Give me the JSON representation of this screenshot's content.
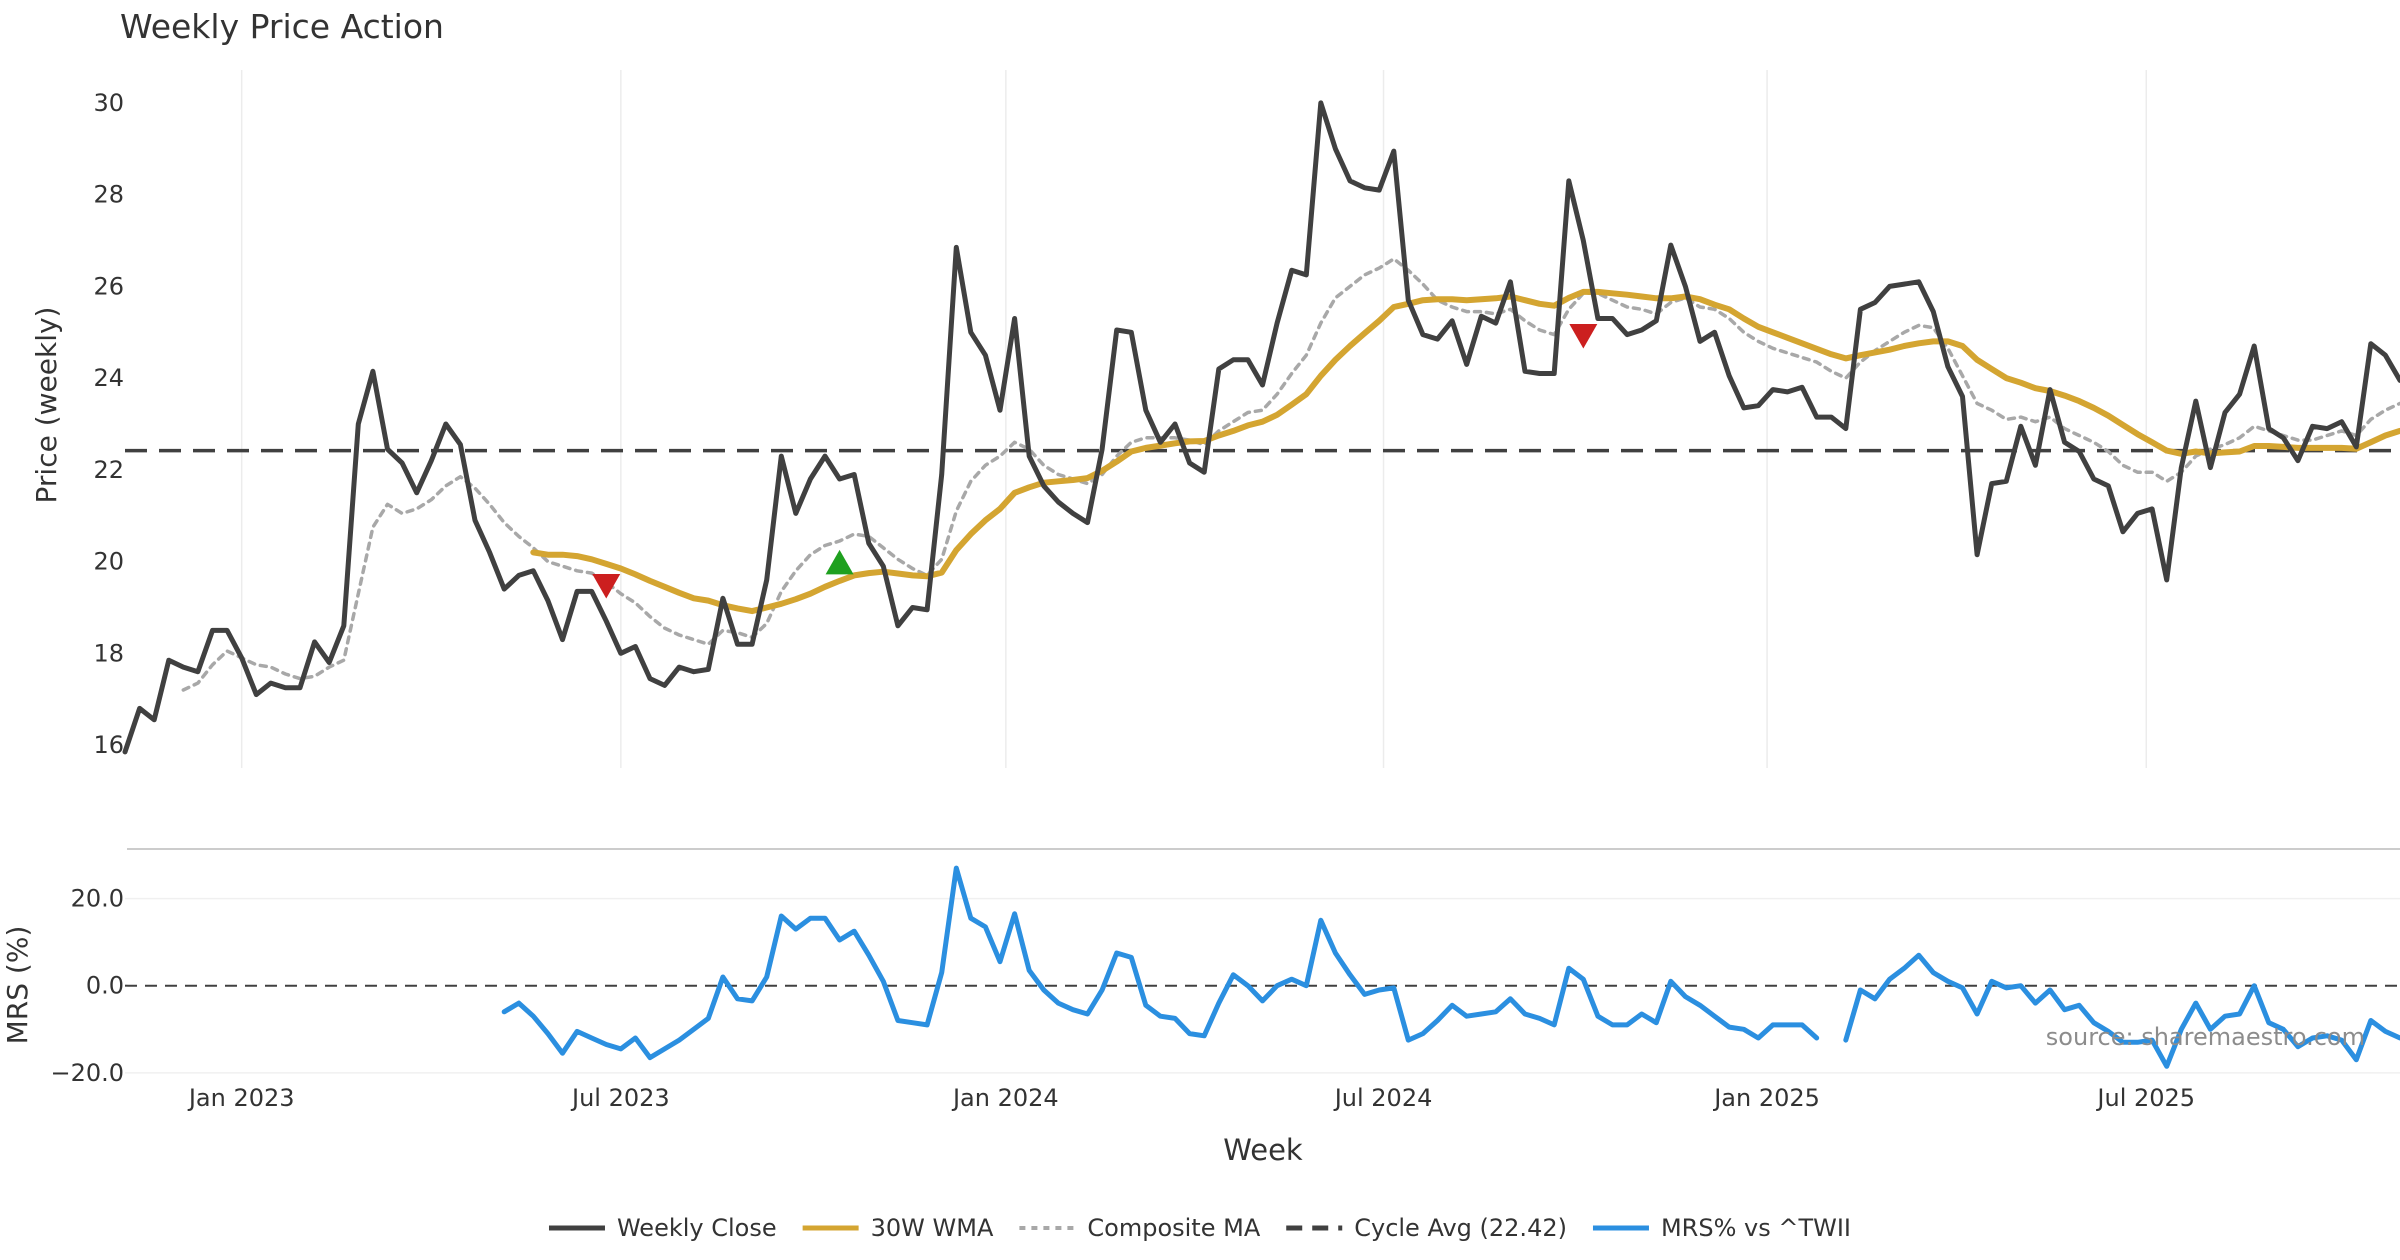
{
  "chart_data": [
    {
      "type": "line",
      "panel": "price",
      "title": "Weekly Price Action",
      "ylabel": "Price (weekly)",
      "ylim": [
        15.5,
        30.5
      ],
      "yticks": [
        16,
        18,
        20,
        22,
        24,
        26,
        28,
        30
      ],
      "grid": "vertical",
      "series": [
        {
          "name": "Weekly Close",
          "color": "#404040",
          "values": [
            15.85,
            16.8,
            16.55,
            17.85,
            17.7,
            17.6,
            18.5,
            18.5,
            17.9,
            17.1,
            17.35,
            17.25,
            17.25,
            18.25,
            17.8,
            18.6,
            23.0,
            24.15,
            22.45,
            22.15,
            21.5,
            22.2,
            23.0,
            22.55,
            20.9,
            20.2,
            19.4,
            19.7,
            19.8,
            19.15,
            18.3,
            19.35,
            19.35,
            18.7,
            18.0,
            18.15,
            17.45,
            17.3,
            17.7,
            17.6,
            17.65,
            19.2,
            18.2,
            18.2,
            19.6,
            22.3,
            21.05,
            21.8,
            22.3,
            21.8,
            21.9,
            20.4,
            19.9,
            18.6,
            19.0,
            18.95,
            21.9,
            26.85,
            25.0,
            24.5,
            23.3,
            25.3,
            22.3,
            21.65,
            21.3,
            21.05,
            20.85,
            22.45,
            25.05,
            25.0,
            23.3,
            22.6,
            23.0,
            22.15,
            21.95,
            24.2,
            24.4,
            24.4,
            23.85,
            25.2,
            26.35,
            26.25,
            30.0,
            29.0,
            28.3,
            28.15,
            28.1,
            28.95,
            25.7,
            24.95,
            24.85,
            25.25,
            24.3,
            25.35,
            25.2,
            26.1,
            24.15,
            24.1,
            24.1,
            28.3,
            27.0,
            25.3,
            25.3,
            24.95,
            25.05,
            25.25,
            26.9,
            26.0,
            24.8,
            25.0,
            24.05,
            23.35,
            23.4,
            23.75,
            23.7,
            23.8,
            23.15,
            23.15,
            22.9,
            25.5,
            25.65,
            26.0,
            26.05,
            26.1,
            25.45,
            24.25,
            23.6,
            20.15,
            21.7,
            21.75,
            22.95,
            22.1,
            23.75,
            22.6,
            22.4,
            21.8,
            21.65,
            20.65,
            21.05,
            21.15,
            19.6,
            22.05,
            23.5,
            22.05,
            23.25,
            23.65,
            24.7,
            22.9,
            22.7,
            22.2,
            22.95,
            22.9,
            23.05,
            22.5,
            24.75,
            24.5,
            23.95
          ]
        },
        {
          "name": "30W WMA",
          "color": "#d4a531",
          "values": [
            null,
            null,
            null,
            null,
            null,
            null,
            null,
            null,
            null,
            null,
            null,
            null,
            null,
            null,
            null,
            null,
            null,
            null,
            null,
            null,
            null,
            null,
            null,
            null,
            null,
            null,
            null,
            null,
            20.2,
            20.15,
            20.15,
            20.12,
            20.05,
            19.95,
            19.85,
            19.72,
            19.58,
            19.45,
            19.32,
            19.2,
            19.15,
            19.05,
            18.98,
            18.92,
            19.0,
            19.08,
            19.18,
            19.3,
            19.45,
            19.58,
            19.7,
            19.75,
            19.78,
            19.74,
            19.7,
            19.68,
            19.76,
            20.25,
            20.6,
            20.9,
            21.15,
            21.5,
            21.62,
            21.72,
            21.75,
            21.78,
            21.82,
            21.98,
            22.18,
            22.4,
            22.48,
            22.53,
            22.58,
            22.62,
            22.63,
            22.75,
            22.85,
            22.97,
            23.05,
            23.2,
            23.42,
            23.65,
            24.05,
            24.4,
            24.7,
            24.98,
            25.25,
            25.55,
            25.62,
            25.7,
            25.72,
            25.72,
            25.7,
            25.72,
            25.74,
            25.78,
            25.7,
            25.62,
            25.58,
            25.75,
            25.88,
            25.88,
            25.85,
            25.82,
            25.78,
            25.74,
            25.74,
            25.78,
            25.72,
            25.6,
            25.5,
            25.3,
            25.12,
            25.0,
            24.88,
            24.76,
            24.64,
            24.52,
            24.43,
            24.5,
            24.56,
            24.62,
            24.7,
            24.76,
            24.8,
            24.8,
            24.7,
            24.4,
            24.2,
            24.0,
            23.9,
            23.78,
            23.72,
            23.62,
            23.5,
            23.35,
            23.18,
            22.98,
            22.78,
            22.6,
            22.42,
            22.35,
            22.4,
            22.36,
            22.38,
            22.4,
            22.52,
            22.52,
            22.5,
            22.48,
            22.48,
            22.48,
            22.48,
            22.46,
            22.6,
            22.75,
            22.85
          ]
        },
        {
          "name": "Composite MA",
          "color": "#a8a8a8",
          "values": [
            null,
            null,
            null,
            null,
            17.2,
            17.35,
            17.75,
            18.05,
            17.9,
            17.75,
            17.7,
            17.55,
            17.45,
            17.5,
            17.7,
            17.85,
            19.3,
            20.75,
            21.25,
            21.05,
            21.15,
            21.35,
            21.65,
            21.85,
            21.6,
            21.25,
            20.85,
            20.55,
            20.3,
            20.0,
            19.9,
            19.8,
            19.75,
            19.55,
            19.3,
            19.1,
            18.8,
            18.55,
            18.4,
            18.3,
            18.2,
            18.5,
            18.45,
            18.35,
            18.65,
            19.35,
            19.8,
            20.15,
            20.35,
            20.45,
            20.6,
            20.55,
            20.3,
            20.05,
            19.85,
            19.7,
            20.05,
            21.1,
            21.75,
            22.1,
            22.3,
            22.6,
            22.45,
            22.1,
            21.9,
            21.8,
            21.7,
            21.9,
            22.3,
            22.6,
            22.7,
            22.7,
            22.7,
            22.65,
            22.55,
            22.85,
            23.05,
            23.25,
            23.3,
            23.65,
            24.1,
            24.5,
            25.2,
            25.75,
            26.0,
            26.25,
            26.4,
            26.6,
            26.35,
            26.05,
            25.7,
            25.55,
            25.45,
            25.45,
            25.4,
            25.5,
            25.25,
            25.05,
            24.95,
            25.5,
            25.85,
            25.85,
            25.7,
            25.55,
            25.5,
            25.4,
            25.65,
            25.75,
            25.55,
            25.5,
            25.3,
            25.0,
            24.8,
            24.65,
            24.55,
            24.45,
            24.35,
            24.15,
            24.0,
            24.35,
            24.6,
            24.8,
            25.0,
            25.15,
            25.1,
            24.65,
            24.05,
            23.45,
            23.3,
            23.1,
            23.15,
            23.05,
            23.15,
            22.9,
            22.75,
            22.6,
            22.4,
            22.1,
            21.95,
            21.95,
            21.75,
            21.95,
            22.3,
            22.45,
            22.55,
            22.7,
            22.95,
            22.85,
            22.75,
            22.65,
            22.65,
            22.75,
            22.85,
            22.75,
            23.1,
            23.3,
            23.45
          ]
        }
      ],
      "reference_line": {
        "name": "Cycle Avg (22.42)",
        "value": 22.42,
        "color": "#404040"
      },
      "markers": [
        {
          "type": "sell",
          "index": 33,
          "value": 19.5,
          "color": "#cc1f1f"
        },
        {
          "type": "buy",
          "index": 49,
          "value": 19.95,
          "color": "#1fa01f"
        },
        {
          "type": "sell",
          "index": 100,
          "value": 24.95,
          "color": "#cc1f1f"
        }
      ]
    },
    {
      "type": "line",
      "panel": "mrs",
      "ylabel": "MRS (%)",
      "xlabel": "Week",
      "ylim": [
        -20.5,
        30
      ],
      "yticks": [
        -20,
        0,
        20
      ],
      "ytick_labels": [
        "−20.0",
        "0.0",
        "20.0"
      ],
      "x_start": "2022-12-05",
      "x_step_days": 7,
      "x_ticks": [
        {
          "label": "Jan 2023",
          "week": 8
        },
        {
          "label": "Jul 2023",
          "week": 34
        },
        {
          "label": "Jan 2024",
          "week": 60.4
        },
        {
          "label": "Jul 2024",
          "week": 86.3
        },
        {
          "label": "Jan 2025",
          "week": 112.6
        },
        {
          "label": "Jul 2025",
          "week": 138.6
        }
      ],
      "reference_line": {
        "value": 0,
        "color": "#404040"
      },
      "series": [
        {
          "name": "MRS% vs ^TWII",
          "color": "#2b8fe0",
          "values": [
            null,
            null,
            null,
            null,
            null,
            null,
            null,
            null,
            null,
            null,
            null,
            null,
            null,
            null,
            null,
            null,
            null,
            null,
            null,
            null,
            null,
            null,
            null,
            null,
            null,
            null,
            -6.0,
            -4.0,
            -7.0,
            -11.0,
            -15.5,
            -10.5,
            -12.0,
            -13.5,
            -14.5,
            -12.0,
            -16.5,
            -14.5,
            -12.5,
            -10.0,
            -7.5,
            2.0,
            -3.0,
            -3.5,
            2.0,
            16.0,
            13.0,
            15.5,
            15.5,
            10.5,
            12.5,
            7.0,
            1.0,
            -8.0,
            -8.5,
            -9.0,
            3.0,
            27.0,
            15.5,
            13.5,
            5.5,
            16.5,
            3.5,
            -1.0,
            -4.0,
            -5.5,
            -6.5,
            -1.0,
            7.5,
            6.5,
            -4.5,
            -7.0,
            -7.5,
            -11.0,
            -11.5,
            -4.0,
            2.5,
            0.0,
            -3.5,
            0.0,
            1.5,
            0.0,
            15.0,
            7.5,
            2.5,
            -2.0,
            -1.0,
            -0.5,
            -12.5,
            -11.0,
            -8.0,
            -4.5,
            -7.0,
            -6.5,
            -6.0,
            -3.0,
            -6.5,
            -7.5,
            -9.0,
            4.0,
            1.5,
            -7.0,
            -9.0,
            -9.0,
            -6.5,
            -8.5,
            1.0,
            -2.5,
            -4.5,
            -7.0,
            -9.5,
            -10.0,
            -12.0,
            -9.0,
            -9.0,
            -9.0,
            -12.0,
            null,
            -12.5,
            -1.0,
            -3.0,
            1.5,
            4.0,
            7.0,
            3.0,
            1.0,
            -0.5,
            -6.5,
            1.0,
            -0.5,
            0.0,
            -4.0,
            -1.0,
            -5.5,
            -4.5,
            -8.5,
            -10.5,
            -13.0,
            -13.0,
            -12.5,
            -18.5,
            -10.0,
            -4.0,
            -10.0,
            -7.0,
            -6.5,
            0.0,
            -8.5,
            -10.0,
            -14.0,
            -12.0,
            -11.5,
            -12.5,
            -17.0,
            -8.0,
            -10.5,
            -12.0
          ]
        }
      ]
    }
  ],
  "chart_text": {
    "title": "Weekly Price Action",
    "price_ylabel": "Price (weekly)",
    "mrs_ylabel": "MRS (%)",
    "xlabel": "Week",
    "source": "source: sharemaestro.com"
  },
  "legend": {
    "placement": "bottom-center",
    "items": [
      {
        "label": "Weekly Close",
        "style": "solid",
        "color": "#404040"
      },
      {
        "label": "30W WMA",
        "style": "solid",
        "color": "#d4a531"
      },
      {
        "label": "Composite MA",
        "style": "dotted",
        "color": "#a8a8a8"
      },
      {
        "label": "Cycle Avg (22.42)",
        "style": "dashed",
        "color": "#404040"
      },
      {
        "label": "MRS% vs ^TWII",
        "style": "solid",
        "color": "#2b8fe0"
      }
    ]
  }
}
